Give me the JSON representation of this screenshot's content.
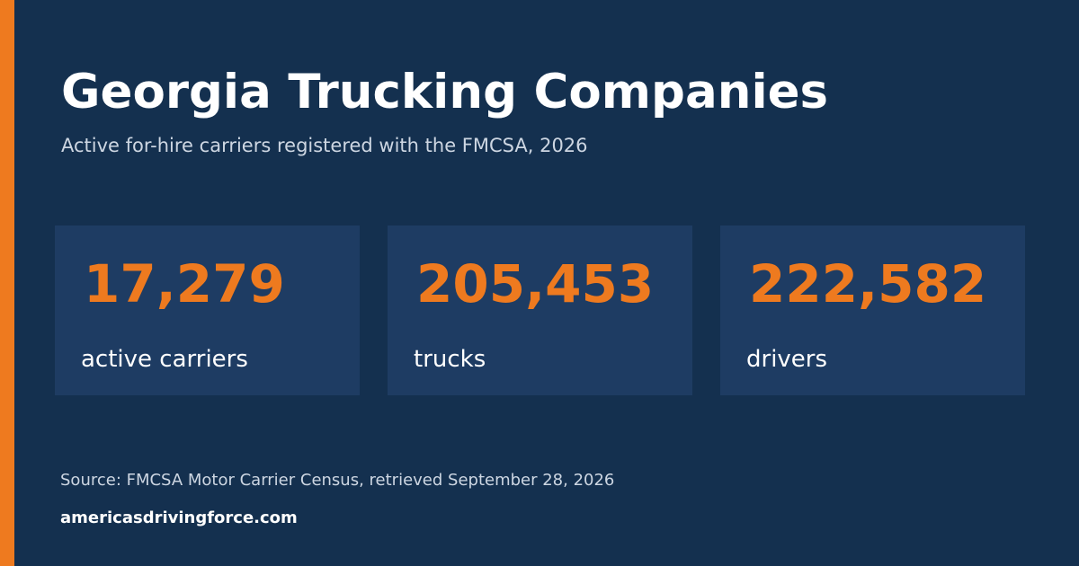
{
  "header": {
    "title": "Georgia Trucking Companies",
    "subtitle": "Active for-hire carriers registered with the FMCSA, 2026"
  },
  "stats": [
    {
      "value": "17,279",
      "label": "active carriers"
    },
    {
      "value": "205,453",
      "label": "trucks"
    },
    {
      "value": "222,582",
      "label": "drivers"
    }
  ],
  "footer": {
    "source": "Source: FMCSA Motor Carrier Census, retrieved September 28, 2026",
    "site": "americasdrivingforce.com"
  },
  "colors": {
    "background": "#14304f",
    "card": "#1e3c63",
    "accent": "#ee7a1f",
    "text_primary": "#ffffff",
    "text_secondary": "#cdd6e2"
  }
}
